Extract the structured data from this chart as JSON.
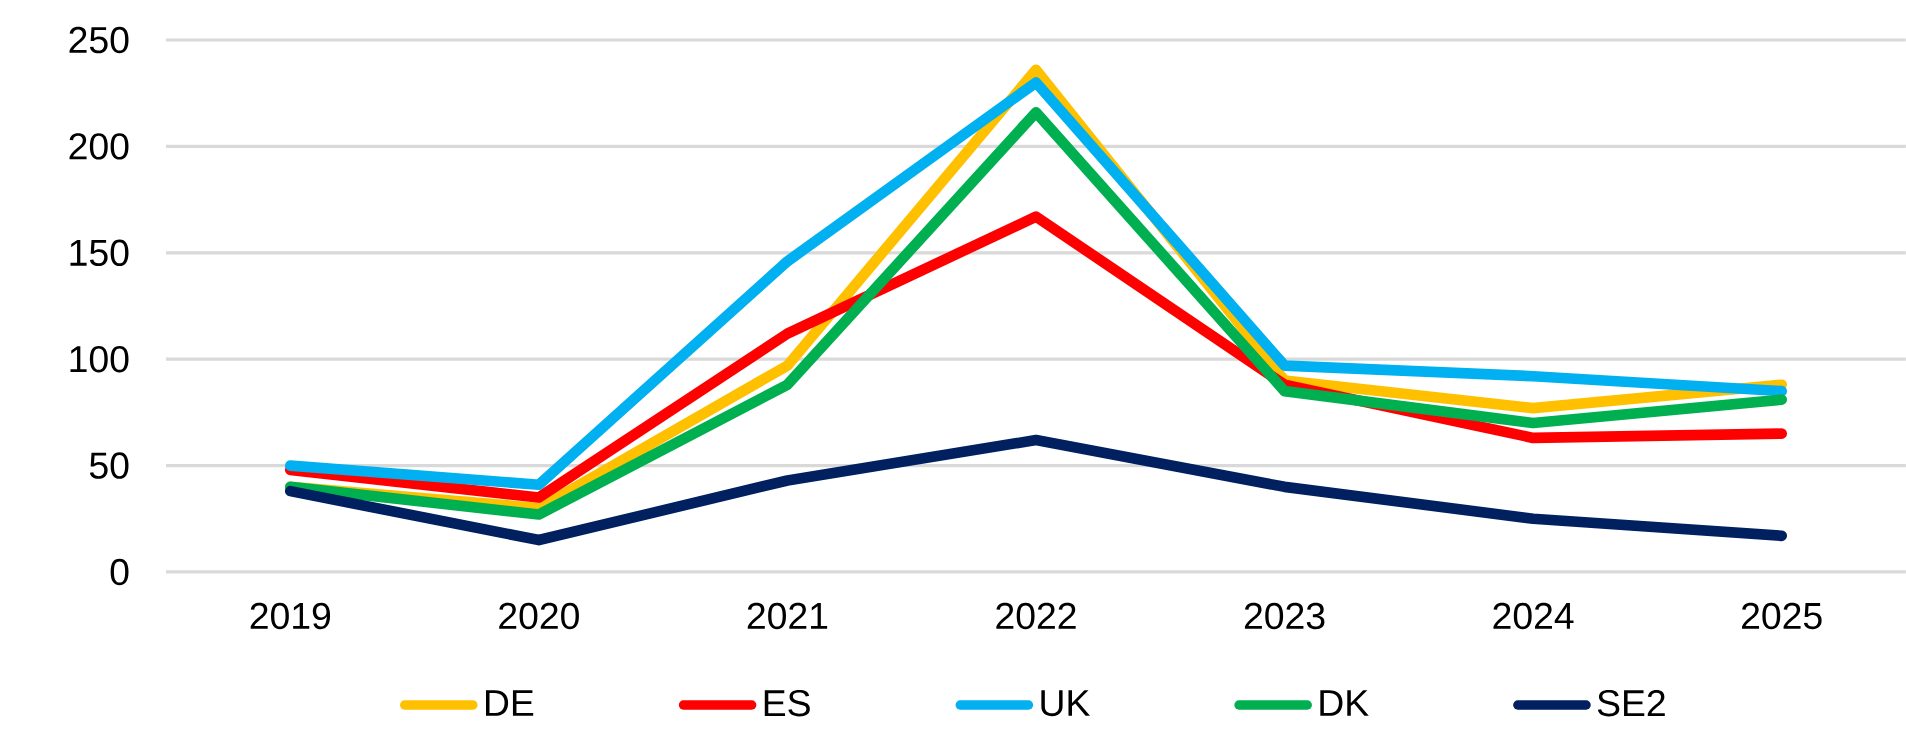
{
  "chart_data": {
    "type": "line",
    "categories": [
      "2019",
      "2020",
      "2021",
      "2022",
      "2023",
      "2024",
      "2025"
    ],
    "series": [
      {
        "name": "DE",
        "color": "#ffc000",
        "values": [
          40,
          30,
          97,
          236,
          90,
          77,
          88
        ]
      },
      {
        "name": "ES",
        "color": "#ff0000",
        "values": [
          48,
          35,
          112,
          167,
          88,
          63,
          65
        ]
      },
      {
        "name": "UK",
        "color": "#00b0f0",
        "values": [
          50,
          41,
          146,
          230,
          97,
          92,
          85
        ]
      },
      {
        "name": "DK",
        "color": "#00b050",
        "values": [
          40,
          27,
          88,
          216,
          85,
          70,
          81
        ]
      },
      {
        "name": "SE2",
        "color": "#002060",
        "values": [
          38,
          15,
          43,
          62,
          40,
          25,
          17
        ]
      }
    ],
    "ylim": [
      0,
      250
    ],
    "yticks": [
      0,
      50,
      100,
      150,
      200,
      250
    ],
    "grid": "y",
    "legend": "bottom",
    "marker": "none",
    "line_style": "solid"
  }
}
